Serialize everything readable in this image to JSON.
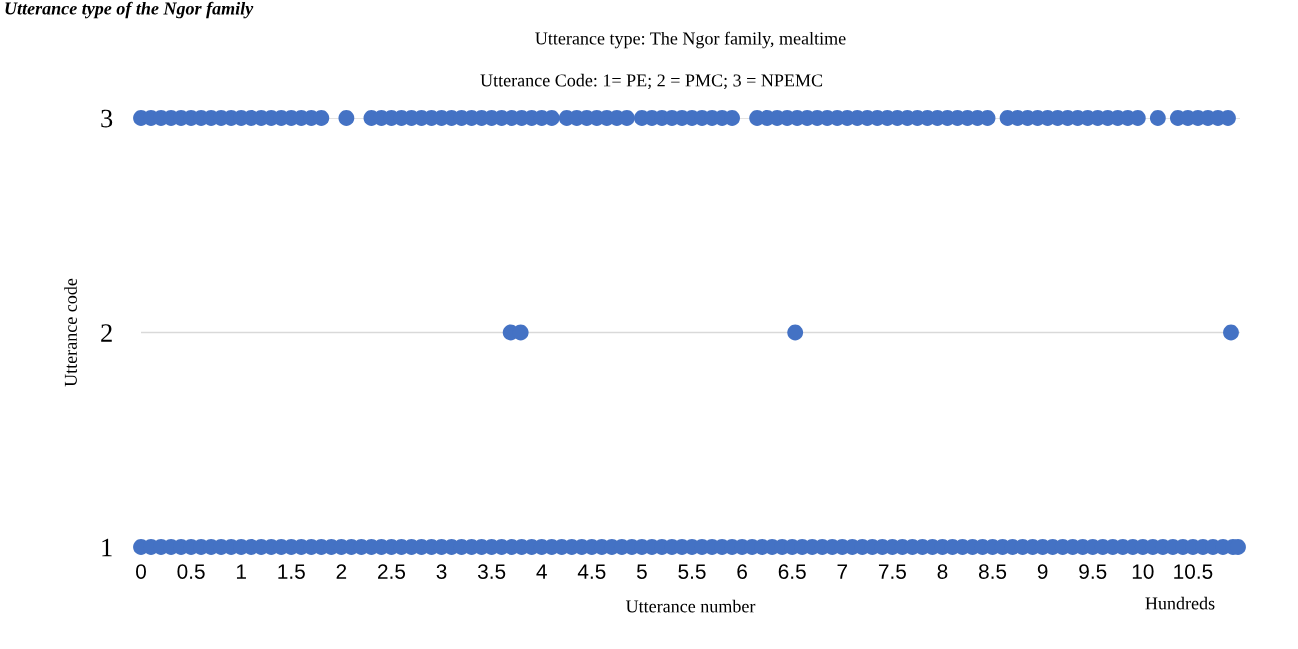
{
  "chart_data": {
    "type": "scatter",
    "title": "Utterance type: The Ngor family, mealtime",
    "subtitle": "Utterance Code: 1= PE; 2 = PMC; 3 = NPEMC",
    "xlabel": "Utterance number",
    "ylabel": "Utterance code",
    "annotations": [
      "Utterance type of the Ngor family",
      "Hundreds"
    ],
    "series": [
      {
        "color": "#4472c4",
        "x": [
          0,
          0.1,
          0.2,
          0.3,
          0.4,
          0.5,
          0.6,
          0.7,
          0.8,
          0.9,
          1,
          1.1,
          1.2,
          1.3,
          1.4,
          1.5,
          1.6,
          1.7,
          1.8,
          1.9,
          2,
          2.1,
          2.2,
          2.3,
          2.4,
          2.5,
          2.6,
          2.7,
          2.8,
          2.9,
          3,
          3.1,
          3.2,
          3.3,
          3.4,
          3.5,
          3.6,
          3.7,
          3.8,
          3.9,
          4,
          4.1,
          4.2,
          4.3,
          4.4,
          4.5,
          4.6,
          4.7,
          4.8,
          4.9,
          5,
          5.1,
          5.2,
          5.3,
          5.4,
          5.5,
          5.6,
          5.7,
          5.8,
          5.9,
          6,
          6.1,
          6.2,
          6.3,
          6.4,
          6.5,
          6.6,
          6.7,
          6.8,
          6.9,
          7,
          7.1,
          7.2,
          7.3,
          7.4,
          7.5,
          7.6,
          7.7,
          7.8,
          7.9,
          8,
          8.1,
          8.2,
          8.3,
          8.4,
          8.5,
          8.6,
          8.7,
          8.8,
          8.9,
          9,
          9.1,
          9.2,
          9.3,
          9.4,
          9.5,
          9.6,
          9.7,
          9.8,
          9.9,
          10,
          10.1,
          10.2,
          10.3,
          10.4,
          10.5,
          10.6,
          10.7,
          10.8,
          10.9,
          10.95
        ],
        "values": [
          1,
          1,
          1,
          1,
          1,
          1,
          1,
          1,
          1,
          1,
          1,
          1,
          1,
          1,
          1,
          1,
          1,
          1,
          1,
          1,
          1,
          1,
          1,
          1,
          1,
          1,
          1,
          1,
          1,
          1,
          1,
          1,
          1,
          1,
          1,
          1,
          1,
          1,
          1,
          1,
          1,
          1,
          1,
          1,
          1,
          1,
          1,
          1,
          1,
          1,
          1,
          1,
          1,
          1,
          1,
          1,
          1,
          1,
          1,
          1,
          1,
          1,
          1,
          1,
          1,
          1,
          1,
          1,
          1,
          1,
          1,
          1,
          1,
          1,
          1,
          1,
          1,
          1,
          1,
          1,
          1,
          1,
          1,
          1,
          1,
          1,
          1,
          1,
          1,
          1,
          1,
          1,
          1,
          1,
          1,
          1,
          1,
          1,
          1,
          1,
          1,
          1,
          1,
          1,
          1,
          1,
          1,
          1,
          1,
          1,
          1
        ]
      },
      {
        "color": "#4472c4",
        "x": [
          3.69,
          3.79,
          6.53,
          10.88
        ],
        "values": [
          2,
          2,
          2,
          2
        ]
      },
      {
        "color": "#4472c4",
        "x": [
          0,
          0.1,
          0.2,
          0.3,
          0.4,
          0.5,
          0.6,
          0.7,
          0.8,
          0.9,
          1,
          1.1,
          1.2,
          1.3,
          1.4,
          1.5,
          1.6,
          1.7,
          1.8,
          2.05,
          2.3,
          2.4,
          2.5,
          2.6,
          2.7,
          2.8,
          2.9,
          3,
          3.1,
          3.2,
          3.3,
          3.4,
          3.5,
          3.6,
          3.7,
          3.8,
          3.9,
          4,
          4.1,
          4.25,
          4.35,
          4.45,
          4.55,
          4.65,
          4.75,
          4.85,
          5,
          5.1,
          5.2,
          5.3,
          5.4,
          5.5,
          5.6,
          5.7,
          5.8,
          5.9,
          6.15,
          6.25,
          6.35,
          6.45,
          6.55,
          6.65,
          6.75,
          6.85,
          6.95,
          7.05,
          7.15,
          7.25,
          7.35,
          7.45,
          7.55,
          7.65,
          7.75,
          7.85,
          7.95,
          8.05,
          8.15,
          8.25,
          8.35,
          8.45,
          8.65,
          8.75,
          8.85,
          8.95,
          9.05,
          9.15,
          9.25,
          9.35,
          9.45,
          9.55,
          9.65,
          9.75,
          9.85,
          9.95,
          10.15,
          10.35,
          10.45,
          10.55,
          10.65,
          10.75,
          10.85
        ],
        "values": [
          3,
          3,
          3,
          3,
          3,
          3,
          3,
          3,
          3,
          3,
          3,
          3,
          3,
          3,
          3,
          3,
          3,
          3,
          3,
          3,
          3,
          3,
          3,
          3,
          3,
          3,
          3,
          3,
          3,
          3,
          3,
          3,
          3,
          3,
          3,
          3,
          3,
          3,
          3,
          3,
          3,
          3,
          3,
          3,
          3,
          3,
          3,
          3,
          3,
          3,
          3,
          3,
          3,
          3,
          3,
          3,
          3,
          3,
          3,
          3,
          3,
          3,
          3,
          3,
          3,
          3,
          3,
          3,
          3,
          3,
          3,
          3,
          3,
          3,
          3,
          3,
          3,
          3,
          3,
          3,
          3,
          3,
          3,
          3,
          3,
          3,
          3,
          3,
          3,
          3,
          3,
          3,
          3,
          3,
          3,
          3,
          3,
          3,
          3,
          3,
          3
        ]
      }
    ],
    "xlim": [
      0,
      10.97
    ],
    "xticks": [
      0,
      0.5,
      1,
      1.5,
      2,
      2.5,
      3,
      3.5,
      4,
      4.5,
      5,
      5.5,
      6,
      6.5,
      7,
      7.5,
      8,
      8.5,
      9,
      9.5,
      10,
      10.5
    ],
    "ylim": [
      1,
      3
    ],
    "yticks": [
      1,
      2,
      3
    ],
    "grid": "y",
    "marker": "circle",
    "legend": false
  }
}
